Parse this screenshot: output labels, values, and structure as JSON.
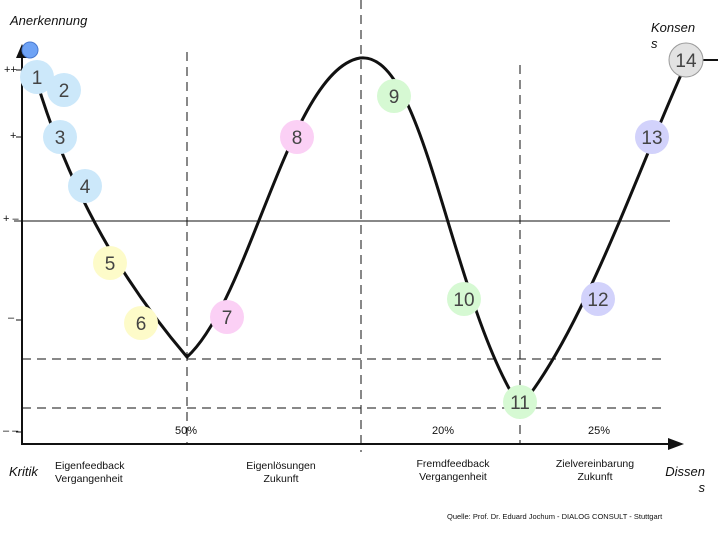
{
  "labels": {
    "y_axis_top": "Anerkennung",
    "top_right": "Konsen\ns",
    "bottom_left": "Kritik",
    "bottom_right": "Dissen\ns",
    "source": "Quelle: Prof. Dr. Eduard Jochum - DIALOG CONSULT - Stuttgart"
  },
  "y_levels": [
    "++",
    "+",
    "+ –",
    "–",
    "– –"
  ],
  "percentages": [
    "50%",
    "20%",
    "25%"
  ],
  "phases": [
    {
      "line1": "Eigenfeedback",
      "line2": "Vergangenheit"
    },
    {
      "line1": "Eigenlösungen",
      "line2": "Zukunft"
    },
    {
      "line1": "Fremdfeedback",
      "line2": "Vergangenheit"
    },
    {
      "line1": "Zielvereinbarung",
      "line2": "Zukunft"
    }
  ],
  "steps": [
    {
      "n": "1",
      "color": "#cce8fa"
    },
    {
      "n": "2",
      "color": "#cce8fa"
    },
    {
      "n": "3",
      "color": "#cce8fa"
    },
    {
      "n": "4",
      "color": "#cce8fa"
    },
    {
      "n": "5",
      "color": "#fdfbc9"
    },
    {
      "n": "6",
      "color": "#fdfbc9"
    },
    {
      "n": "7",
      "color": "#fbd0f5"
    },
    {
      "n": "8",
      "color": "#fbd0f5"
    },
    {
      "n": "9",
      "color": "#d6f9d3"
    },
    {
      "n": "10",
      "color": "#d6f9d3"
    },
    {
      "n": "11",
      "color": "#d6f9d3"
    },
    {
      "n": "12",
      "color": "#d2d2fb"
    },
    {
      "n": "13",
      "color": "#d2d2fb"
    },
    {
      "n": "14",
      "color": "#e2e2e2"
    }
  ],
  "colors": {
    "marker": "#6fa3f5",
    "ink": "#111111"
  }
}
